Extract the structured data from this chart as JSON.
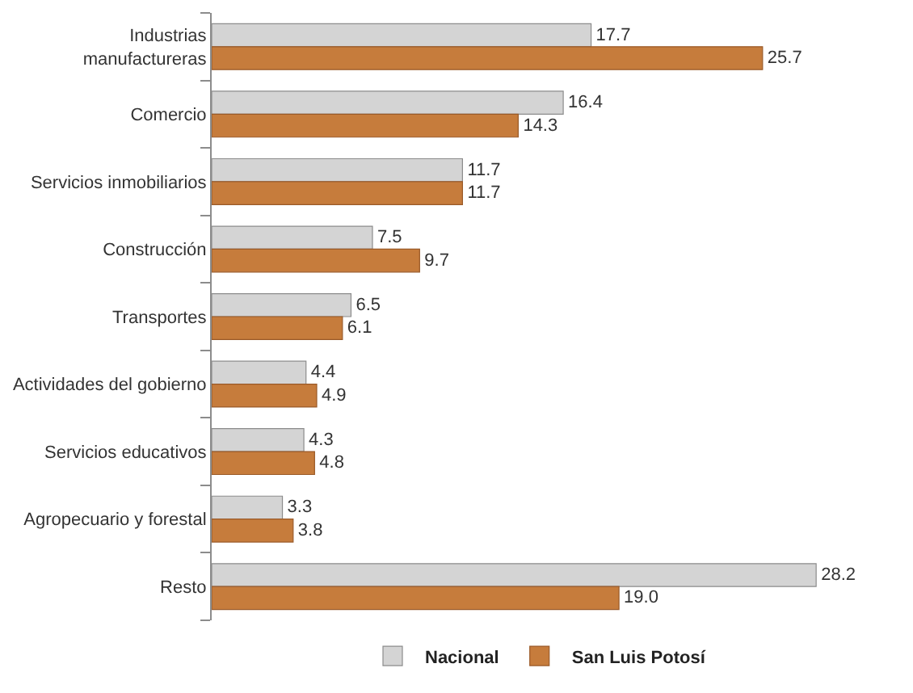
{
  "chart_data": {
    "type": "bar",
    "orientation": "horizontal",
    "categories": [
      "Industrias\nmanufactureras",
      "Comercio",
      "Servicios inmobiliarios",
      "Construcción",
      "Transportes",
      "Actividades del gobierno",
      "Servicios educativos",
      "Agropecuario y forestal",
      "Resto"
    ],
    "series": [
      {
        "name": "Nacional",
        "color": "#d4d4d4",
        "values": [
          17.7,
          16.4,
          11.7,
          7.5,
          6.5,
          4.4,
          4.3,
          3.3,
          28.2
        ],
        "value_labels": [
          "17.7",
          "16.4",
          "11.7",
          "7.5",
          "6.5",
          "4.4",
          "4.3",
          "3.3",
          "28.2"
        ]
      },
      {
        "name": "San Luis Potosí",
        "color": "#c67c3c",
        "values": [
          25.7,
          14.3,
          11.7,
          9.7,
          6.1,
          4.9,
          4.8,
          3.8,
          19.0
        ],
        "value_labels": [
          "25.7",
          "14.3",
          "11.7",
          "9.7",
          "6.1",
          "4.9",
          "4.8",
          "3.8",
          "19.0"
        ]
      }
    ],
    "legend": "bottom"
  }
}
